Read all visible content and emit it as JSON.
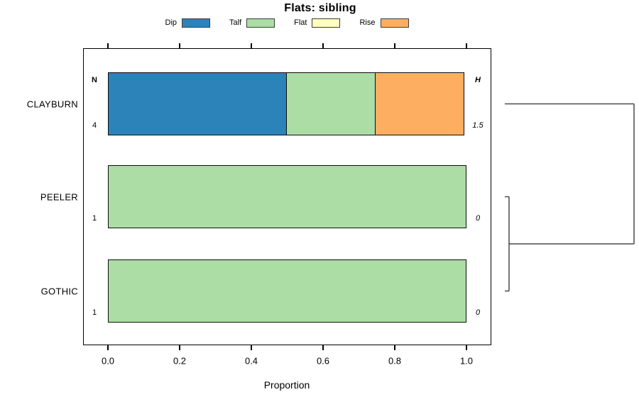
{
  "chart_data": {
    "type": "bar",
    "orientation": "horizontal-stacked",
    "title": "Flats: sibling",
    "xlabel": "Proportion",
    "xlim": [
      0,
      1
    ],
    "grid": false,
    "legend_position": "top",
    "x_ticks": [
      {
        "value": 0.0,
        "label": "0.0"
      },
      {
        "value": 0.2,
        "label": "0.2"
      },
      {
        "value": 0.4,
        "label": "0.4"
      },
      {
        "value": 0.6,
        "label": "0.6"
      },
      {
        "value": 0.8,
        "label": "0.8"
      },
      {
        "value": 1.0,
        "label": "1.0"
      }
    ],
    "categories": [
      "CLAYBURN",
      "PEELER",
      "GOTHIC"
    ],
    "series": [
      {
        "name": "Dip",
        "color": "#2B83BA",
        "values": [
          0.5,
          0,
          0
        ]
      },
      {
        "name": "Talf",
        "color": "#ABDDA4",
        "values": [
          0.25,
          1,
          1
        ]
      },
      {
        "name": "Flat",
        "color": "#FFFFBF",
        "values": [
          0,
          0,
          0
        ]
      },
      {
        "name": "Rise",
        "color": "#FDAE61",
        "values": [
          0.25,
          0,
          0
        ]
      }
    ],
    "n_column": {
      "header": "N",
      "values": [
        "4",
        "1",
        "1"
      ]
    },
    "h_column": {
      "header": "H",
      "values": [
        "1.5",
        "0",
        "0"
      ]
    },
    "dendrogram": {
      "max_height": 1.5,
      "merges": [
        {
          "members": [
            "PEELER",
            "GOTHIC"
          ],
          "height": 0
        },
        {
          "members": [
            "CLAYBURN",
            "PEELER+GOTHIC"
          ],
          "height": 1.5
        }
      ]
    },
    "colors": {
      "bar_border": "#0d0d0d",
      "box_border": "#000000",
      "dendro_line": "#4a4a4a",
      "text": "#000000"
    }
  }
}
